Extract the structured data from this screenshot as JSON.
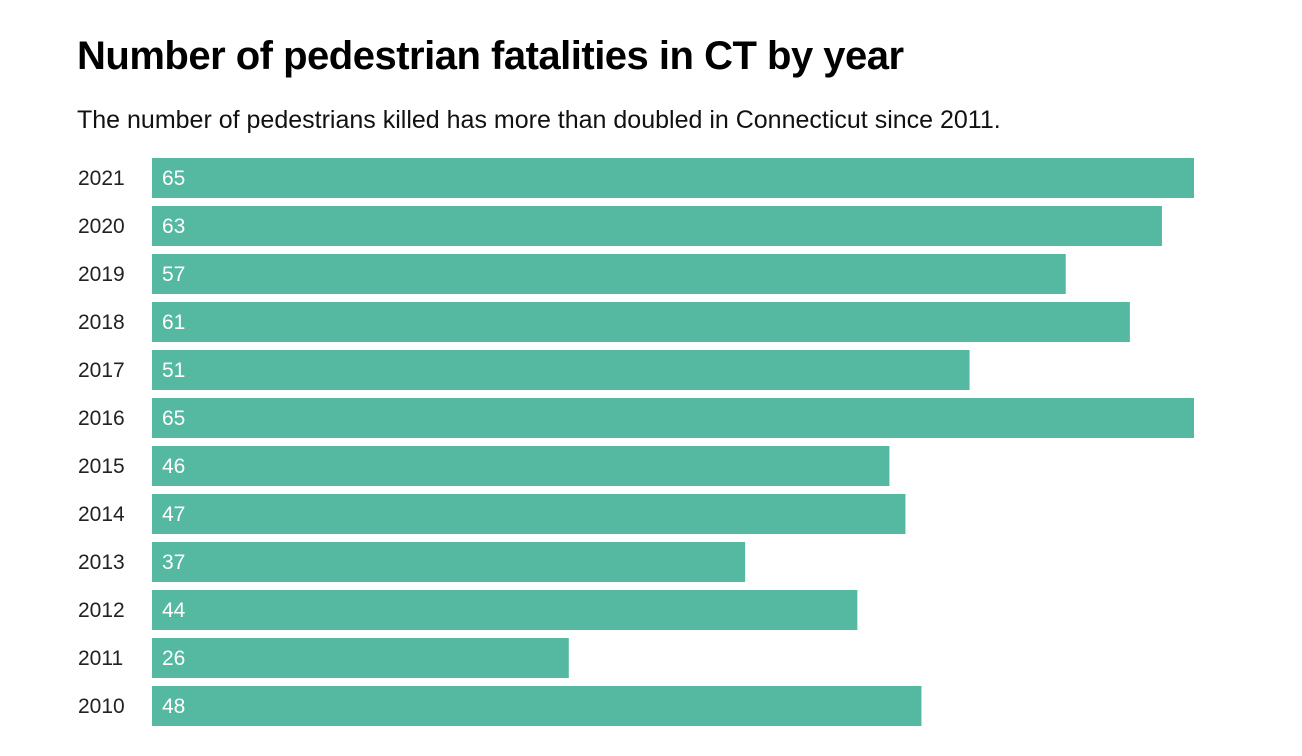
{
  "chart_data": {
    "type": "bar",
    "orientation": "horizontal",
    "title": "Number of pedestrian fatalities in CT by year",
    "subtitle": "The number of pedestrians killed has more than doubled in Connecticut since 2011.",
    "categories": [
      "2021",
      "2020",
      "2019",
      "2018",
      "2017",
      "2016",
      "2015",
      "2014",
      "2013",
      "2012",
      "2011",
      "2010"
    ],
    "values": [
      65,
      63,
      57,
      61,
      51,
      65,
      46,
      47,
      37,
      44,
      26,
      48
    ],
    "xlim": [
      0,
      65
    ],
    "grid": false,
    "bar_color": "#55b8a0",
    "data_labels": true
  }
}
